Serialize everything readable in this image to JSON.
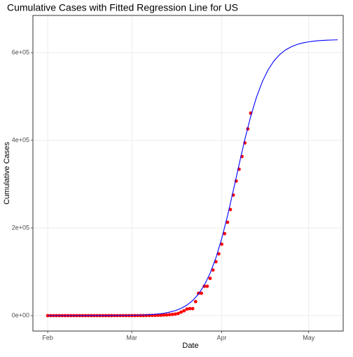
{
  "chart_data": {
    "type": "scatter",
    "title": "Cumulative Cases with Fitted Regression Line for US",
    "x_label": "Date",
    "y_label": "Cumulative Cases",
    "xlim": [
      -5.1,
      101.9
    ],
    "ylim": [
      -35200,
      684800
    ],
    "xticks": [
      {
        "value": 0,
        "label": "Feb"
      },
      {
        "value": 29,
        "label": "Mar"
      },
      {
        "value": 60,
        "label": "Apr"
      },
      {
        "value": 90,
        "label": "May"
      }
    ],
    "yticks": [
      {
        "value": 0,
        "label": "0e+00"
      },
      {
        "value": 200000,
        "label": "2e+05"
      },
      {
        "value": 400000,
        "label": "4e+05"
      },
      {
        "value": 600000,
        "label": "6e+05"
      }
    ],
    "grid": true,
    "series": [
      {
        "type": "scatter",
        "color": "#ff0000",
        "x": [
          0,
          1,
          2,
          3,
          4,
          5,
          6,
          7,
          8,
          9,
          10,
          11,
          12,
          13,
          14,
          15,
          16,
          17,
          18,
          19,
          20,
          21,
          22,
          23,
          24,
          25,
          26,
          27,
          28,
          29,
          30,
          31,
          32,
          33,
          34,
          35,
          36,
          37,
          38,
          39,
          40,
          41,
          42,
          43,
          44,
          45,
          46,
          47,
          48,
          49,
          50,
          51,
          52,
          53,
          54,
          55,
          56,
          57,
          58,
          59,
          60,
          61,
          62,
          63,
          64,
          65,
          66,
          67,
          68,
          69,
          70
        ],
        "values": [
          1,
          1,
          1,
          2,
          3,
          5,
          5,
          6,
          8,
          9,
          11,
          11,
          11,
          12,
          12,
          13,
          13,
          14,
          15,
          15,
          15,
          15,
          15,
          34,
          35,
          35,
          53,
          53,
          57,
          70,
          75,
          100,
          120,
          160,
          220,
          320,
          430,
          540,
          700,
          990,
          1300,
          1600,
          2200,
          2700,
          3500,
          5000,
          8000,
          11000,
          15000,
          16000,
          16000,
          32000,
          51000,
          51000,
          67000,
          67000,
          85000,
          104000,
          123000,
          141000,
          163000,
          187000,
          213000,
          242000,
          275000,
          307000,
          334000,
          363000,
          394000,
          426000,
          462000
        ]
      },
      {
        "type": "line",
        "color": "#0000ff",
        "x": [
          0,
          2,
          4,
          6,
          8,
          10,
          12,
          14,
          16,
          18,
          20,
          22,
          24,
          26,
          28,
          30,
          32,
          34,
          36,
          38,
          40,
          42,
          44,
          46,
          48,
          50,
          52,
          54,
          56,
          58,
          60,
          62,
          64,
          66,
          68,
          70,
          72,
          74,
          76,
          78,
          80,
          82,
          84,
          86,
          88,
          90,
          92,
          94,
          96,
          98,
          100
        ],
        "values": [
          3,
          4,
          6,
          9,
          12,
          18,
          27,
          39,
          57,
          83,
          122,
          178,
          260,
          381,
          557,
          814,
          1190,
          1738,
          2539,
          3706,
          5403,
          7875,
          11443,
          16592,
          23973,
          34445,
          49142,
          69345,
          96492,
          131771,
          175683,
          227601,
          285197,
          344827,
          402427,
          454317,
          498221,
          533491,
          560650,
          580856,
          595572,
          606000,
          613378,
          618557,
          622130,
          624597,
          626292,
          627459,
          628260,
          628811,
          629188
        ]
      }
    ]
  }
}
